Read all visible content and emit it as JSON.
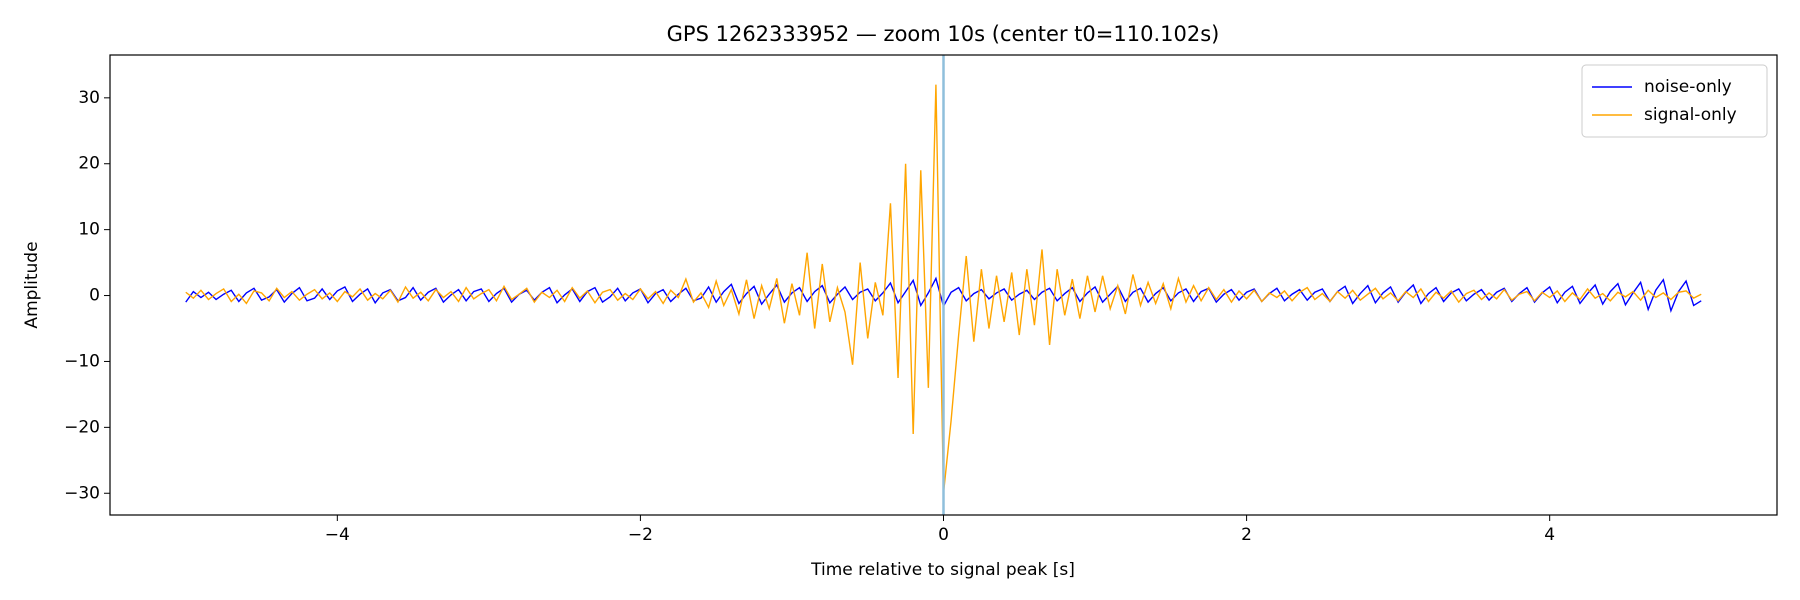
{
  "chart_data": {
    "type": "line",
    "title": "GPS 1262333952 — zoom 10s (center t0=110.102s)",
    "xlabel": "Time relative to signal peak [s]",
    "ylabel": "Amplitude",
    "xlim": [
      -5.5,
      5.5
    ],
    "ylim": [
      -33.3,
      36.5
    ],
    "xticks": [
      {
        "value": -4,
        "label": "−4"
      },
      {
        "value": -2,
        "label": "−2"
      },
      0,
      2,
      4
    ],
    "yticks": [
      {
        "value": -30,
        "label": "−30"
      },
      {
        "value": -20,
        "label": "−20"
      },
      {
        "value": -10,
        "label": "−10"
      },
      0,
      10,
      20,
      30
    ],
    "legend": "upper right",
    "vline": 0,
    "vline_color": "#8fbfdc",
    "x": [
      -5,
      -4.95,
      -4.9,
      -4.85,
      -4.8,
      -4.75,
      -4.7,
      -4.65,
      -4.6,
      -4.55,
      -4.5,
      -4.45,
      -4.4,
      -4.35,
      -4.3,
      -4.25,
      -4.2,
      -4.15,
      -4.1,
      -4.05,
      -4,
      -3.95,
      -3.9,
      -3.85,
      -3.8,
      -3.75,
      -3.7,
      -3.65,
      -3.6,
      -3.55,
      -3.5,
      -3.45,
      -3.4,
      -3.35,
      -3.3,
      -3.25,
      -3.2,
      -3.15,
      -3.1,
      -3.05,
      -3,
      -2.95,
      -2.9,
      -2.85,
      -2.8,
      -2.75,
      -2.7,
      -2.65,
      -2.6,
      -2.55,
      -2.5,
      -2.45,
      -2.4,
      -2.35,
      -2.3,
      -2.25,
      -2.2,
      -2.15,
      -2.1,
      -2.05,
      -2,
      -1.95,
      -1.9,
      -1.85,
      -1.8,
      -1.75,
      -1.7,
      -1.65,
      -1.6,
      -1.55,
      -1.5,
      -1.45,
      -1.4,
      -1.35,
      -1.3,
      -1.25,
      -1.2,
      -1.15,
      -1.1,
      -1.05,
      -1,
      -0.95,
      -0.9,
      -0.85,
      -0.8,
      -0.75,
      -0.7,
      -0.65,
      -0.6,
      -0.55,
      -0.5,
      -0.45,
      -0.4,
      -0.35,
      -0.3,
      -0.25,
      -0.2,
      -0.15,
      -0.1,
      -0.05,
      0,
      0.05,
      0.1,
      0.15,
      0.2,
      0.25,
      0.3,
      0.35,
      0.4,
      0.45,
      0.5,
      0.55,
      0.6,
      0.65,
      0.7,
      0.75,
      0.8,
      0.85,
      0.9,
      0.95,
      1,
      1.05,
      1.1,
      1.15,
      1.2,
      1.25,
      1.3,
      1.35,
      1.4,
      1.45,
      1.5,
      1.55,
      1.6,
      1.65,
      1.7,
      1.75,
      1.8,
      1.85,
      1.9,
      1.95,
      2,
      2.05,
      2.1,
      2.15,
      2.2,
      2.25,
      2.3,
      2.35,
      2.4,
      2.45,
      2.5,
      2.55,
      2.6,
      2.65,
      2.7,
      2.75,
      2.8,
      2.85,
      2.9,
      2.95,
      3,
      3.05,
      3.1,
      3.15,
      3.2,
      3.25,
      3.3,
      3.35,
      3.4,
      3.45,
      3.5,
      3.55,
      3.6,
      3.65,
      3.7,
      3.75,
      3.8,
      3.85,
      3.9,
      3.95,
      4,
      4.05,
      4.1,
      4.15,
      4.2,
      4.25,
      4.3,
      4.35,
      4.4,
      4.45,
      4.5,
      4.55,
      4.6,
      4.65,
      4.7,
      4.75,
      4.8,
      4.85,
      4.9,
      4.95,
      5
    ],
    "series": [
      {
        "name": "noise-only",
        "color": "#0000ff",
        "values": [
          -1.0,
          0.6,
          -0.3,
          0.5,
          -0.6,
          0.2,
          0.8,
          -0.9,
          0.4,
          1.1,
          -0.7,
          -0.2,
          0.9,
          -1.0,
          0.3,
          1.2,
          -0.8,
          -0.4,
          1.0,
          -0.6,
          0.7,
          1.3,
          -0.9,
          0.2,
          1.0,
          -1.1,
          0.4,
          0.9,
          -0.8,
          -0.3,
          1.2,
          -0.7,
          0.5,
          1.1,
          -1.0,
          0.1,
          0.9,
          -0.8,
          0.6,
          1.0,
          -0.9,
          0.3,
          1.1,
          -1.0,
          0.2,
          0.8,
          -0.7,
          0.5,
          1.2,
          -1.1,
          0.1,
          1.0,
          -0.9,
          0.6,
          1.2,
          -1.0,
          -0.2,
          1.1,
          -0.8,
          0.4,
          1.0,
          -1.1,
          0.3,
          0.9,
          -0.9,
          0.2,
          1.1,
          -0.8,
          -0.4,
          1.3,
          -1.0,
          0.6,
          1.7,
          -1.2,
          0.3,
          1.4,
          -1.3,
          0.2,
          1.6,
          -1.0,
          0.4,
          1.2,
          -0.9,
          0.6,
          1.5,
          -1.1,
          0.2,
          1.3,
          -0.6,
          0.5,
          1.0,
          -0.8,
          0.4,
          1.9,
          -1.1,
          0.6,
          2.3,
          -1.5,
          0.4,
          2.6,
          -1.6,
          0.5,
          1.2,
          -0.8,
          0.3,
          0.9,
          -0.5,
          0.4,
          1.0,
          -0.7,
          0.2,
          0.8,
          -0.6,
          0.5,
          1.1,
          -0.8,
          0.3,
          1.2,
          -0.9,
          0.4,
          1.3,
          -1.0,
          0.2,
          1.4,
          -0.9,
          0.5,
          1.1,
          -1.0,
          0.3,
          1.2,
          -0.8,
          0.4,
          1.0,
          -0.9,
          0.6,
          1.1,
          -1.0,
          0.2,
          0.9,
          -0.7,
          0.5,
          1.0,
          -0.9,
          0.3,
          1.1,
          -0.8,
          0.2,
          0.9,
          -0.7,
          0.5,
          1.0,
          -0.9,
          0.6,
          1.4,
          -1.2,
          0.3,
          1.5,
          -1.1,
          0.4,
          1.3,
          -1.0,
          0.5,
          1.6,
          -1.2,
          0.3,
          1.2,
          -0.9,
          0.4,
          1.0,
          -0.8,
          0.2,
          0.9,
          -0.7,
          0.5,
          1.1,
          -0.9,
          0.3,
          1.2,
          -1.0,
          0.4,
          1.3,
          -1.1,
          0.5,
          1.4,
          -1.2,
          0.3,
          1.6,
          -1.3,
          0.6,
          1.8,
          -1.4,
          0.4,
          2.0,
          -2.1,
          0.8,
          2.4,
          -2.3,
          0.6,
          2.2,
          -1.5,
          -0.8
        ]
      },
      {
        "name": "signal-only",
        "color": "#ffa500",
        "values": [
          0.5,
          -0.4,
          0.8,
          -0.6,
          0.3,
          1.0,
          -0.9,
          0.2,
          -1.2,
          0.7,
          0.4,
          -0.8,
          1.1,
          -0.3,
          0.6,
          -0.7,
          0.2,
          0.9,
          -0.5,
          0.4,
          -0.9,
          0.6,
          -0.2,
          1.0,
          -0.7,
          0.3,
          -0.5,
          0.8,
          -1.0,
          1.3,
          -0.4,
          0.5,
          -0.8,
          0.9,
          -0.3,
          0.6,
          -0.9,
          1.2,
          -0.5,
          0.3,
          0.9,
          -0.8,
          1.4,
          -0.6,
          0.2,
          1.1,
          -1.0,
          0.5,
          -0.3,
          0.8,
          -0.9,
          1.2,
          -0.4,
          0.7,
          -1.1,
          0.5,
          0.9,
          -0.7,
          0.3,
          -0.6,
          1.0,
          -0.5,
          0.6,
          -1.2,
          0.8,
          -0.3,
          2.5,
          -1.0,
          0.4,
          -1.8,
          2.2,
          -1.5,
          0.9,
          -2.8,
          2.4,
          -3.5,
          1.5,
          -2.0,
          2.6,
          -4.2,
          1.8,
          -3.0,
          6.5,
          -5.0,
          4.8,
          -4.0,
          1.2,
          -2.5,
          -10.5,
          5.0,
          -6.5,
          2.0,
          -3.0,
          14.0,
          -12.5,
          20.0,
          -21.0,
          19.0,
          -14.0,
          32.0,
          -30.0,
          -19.0,
          -6.0,
          6.0,
          -7.0,
          4.0,
          -5.0,
          3.0,
          -4.0,
          3.5,
          -6.0,
          4.0,
          -4.5,
          7.0,
          -7.5,
          4.0,
          -3.0,
          2.5,
          -3.5,
          3.0,
          -2.5,
          3.0,
          -2.0,
          1.5,
          -2.8,
          3.2,
          -1.5,
          2.0,
          -1.2,
          1.8,
          -2.0,
          2.6,
          -1.0,
          1.5,
          -0.8,
          1.2,
          -0.6,
          0.9,
          -1.0,
          0.7,
          -0.5,
          0.8,
          -0.9,
          0.4,
          -0.3,
          0.7,
          -0.8,
          0.5,
          1.2,
          -0.6,
          0.3,
          -0.9,
          0.6,
          -0.4,
          0.8,
          -0.7,
          0.2,
          1.1,
          -0.5,
          0.4,
          -0.8,
          0.6,
          -0.3,
          1.0,
          -0.9,
          0.5,
          -0.4,
          0.7,
          -1.0,
          0.3,
          0.8,
          -0.6,
          0.4,
          -0.5,
          0.9,
          -0.7,
          0.2,
          0.6,
          -0.8,
          0.5,
          -0.3,
          0.7,
          -0.9,
          0.4,
          -0.6,
          1.0,
          -0.4,
          0.3,
          -0.8,
          0.5,
          -0.2,
          0.6,
          -0.7,
          0.8,
          -0.3,
          0.4,
          -0.6,
          0.5,
          0.7,
          -0.4,
          0.2
        ]
      }
    ]
  }
}
